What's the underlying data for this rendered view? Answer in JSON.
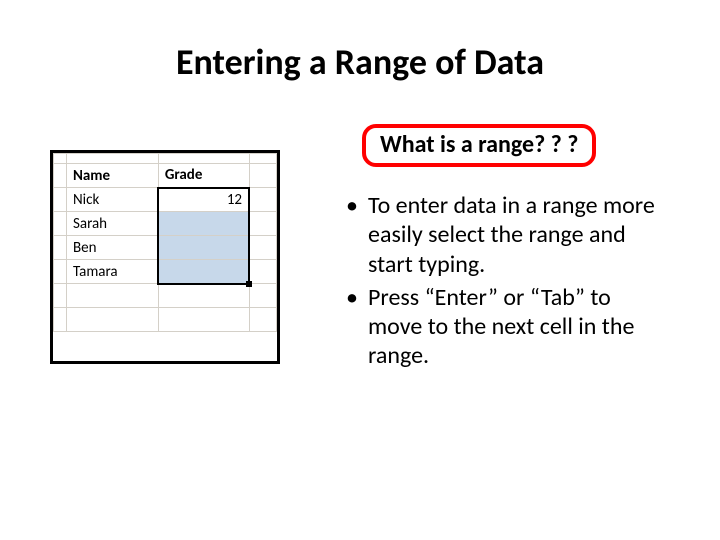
{
  "title": "Entering a Range of Data",
  "callout": {
    "text": "What is a range? ? ?",
    "border_color": "#ff0000",
    "fill_color": "#ffffff"
  },
  "bullets": [
    "To enter data in a range more easily select the range and start typing.",
    "Press “Enter” or “Tab” to move to the next cell in the range."
  ],
  "spreadsheet": {
    "grid_border_color": "#d4d0c8",
    "cell_bg": "#ffffff",
    "selection_border_color": "#000000",
    "selection_fill_color": "#c7d8ea",
    "outer_border_color": "#000000",
    "font_family": "Calibri",
    "font_size_pt": 11,
    "columns": [
      "A_stub",
      "B",
      "C",
      "D_stub"
    ],
    "selection_range": "C2:C5",
    "active_cell": "C2",
    "fill_handle_cell": "C5",
    "rows": [
      {
        "B": "",
        "C": "",
        "B_bold": false
      },
      {
        "B": "Name",
        "C": "Grade",
        "B_bold": true,
        "C_bold": true
      },
      {
        "B": "Nick",
        "C": "12",
        "C_align": "right"
      },
      {
        "B": "Sarah",
        "C": ""
      },
      {
        "B": "Ben",
        "C": ""
      },
      {
        "B": "Tamara",
        "C": ""
      },
      {
        "B": "",
        "C": ""
      },
      {
        "B": "",
        "C": ""
      }
    ]
  },
  "colors": {
    "text": "#000000",
    "background": "#ffffff"
  },
  "typography": {
    "title_fontsize_pt": 36,
    "title_weight": "bold",
    "callout_fontsize_pt": 24,
    "callout_weight": "bold",
    "body_fontsize_pt": 24
  }
}
